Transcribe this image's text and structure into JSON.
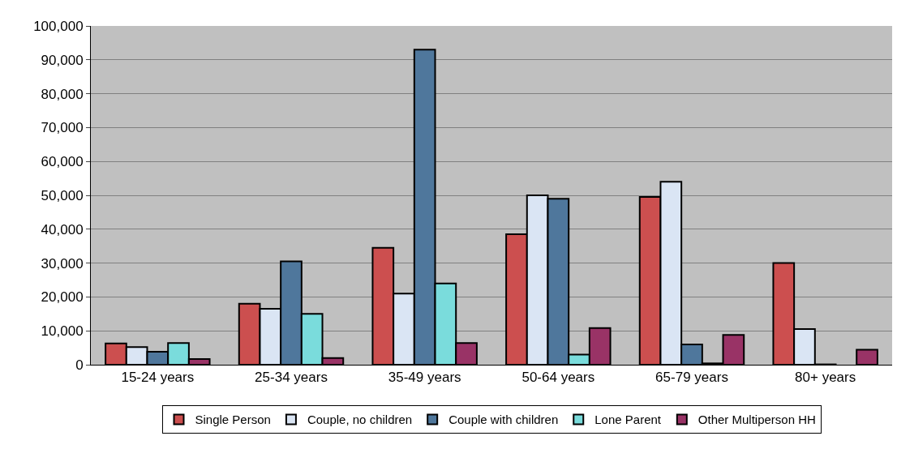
{
  "chart_data": {
    "type": "bar",
    "categories": [
      "15-24 years",
      "25-34 years",
      "35-49 years",
      "50-64 years",
      "65-79 years",
      "80+ years"
    ],
    "series": [
      {
        "name": "Single Person",
        "color": "#cc4f4f",
        "values": [
          6300,
          18000,
          34500,
          38500,
          49500,
          30000
        ]
      },
      {
        "name": "Couple, no children",
        "color": "#dae5f4",
        "values": [
          5200,
          16500,
          21000,
          50000,
          54000,
          10500
        ]
      },
      {
        "name": "Couple with children",
        "color": "#4f779c",
        "values": [
          3800,
          30500,
          93000,
          49000,
          6000,
          100
        ]
      },
      {
        "name": "Lone Parent",
        "color": "#7adcdc",
        "values": [
          6400,
          15000,
          24000,
          3000,
          400,
          null
        ]
      },
      {
        "name": "Other Multiperson HH",
        "color": "#993366",
        "values": [
          1700,
          2000,
          6400,
          10800,
          8800,
          4400
        ]
      }
    ],
    "ylim": [
      0,
      100000
    ],
    "yticks": [
      {
        "value": 0,
        "label": "0"
      },
      {
        "value": 10000,
        "label": "10,000"
      },
      {
        "value": 20000,
        "label": "20,000"
      },
      {
        "value": 30000,
        "label": "30,000"
      },
      {
        "value": 40000,
        "label": "40,000"
      },
      {
        "value": 50000,
        "label": "50,000"
      },
      {
        "value": 60000,
        "label": "60,000"
      },
      {
        "value": 70000,
        "label": "70,000"
      },
      {
        "value": 80000,
        "label": "80,000"
      },
      {
        "value": 90000,
        "label": "90,000"
      },
      {
        "value": 100000,
        "label": "100,000"
      }
    ],
    "grid": "y",
    "legend": "bottom"
  }
}
